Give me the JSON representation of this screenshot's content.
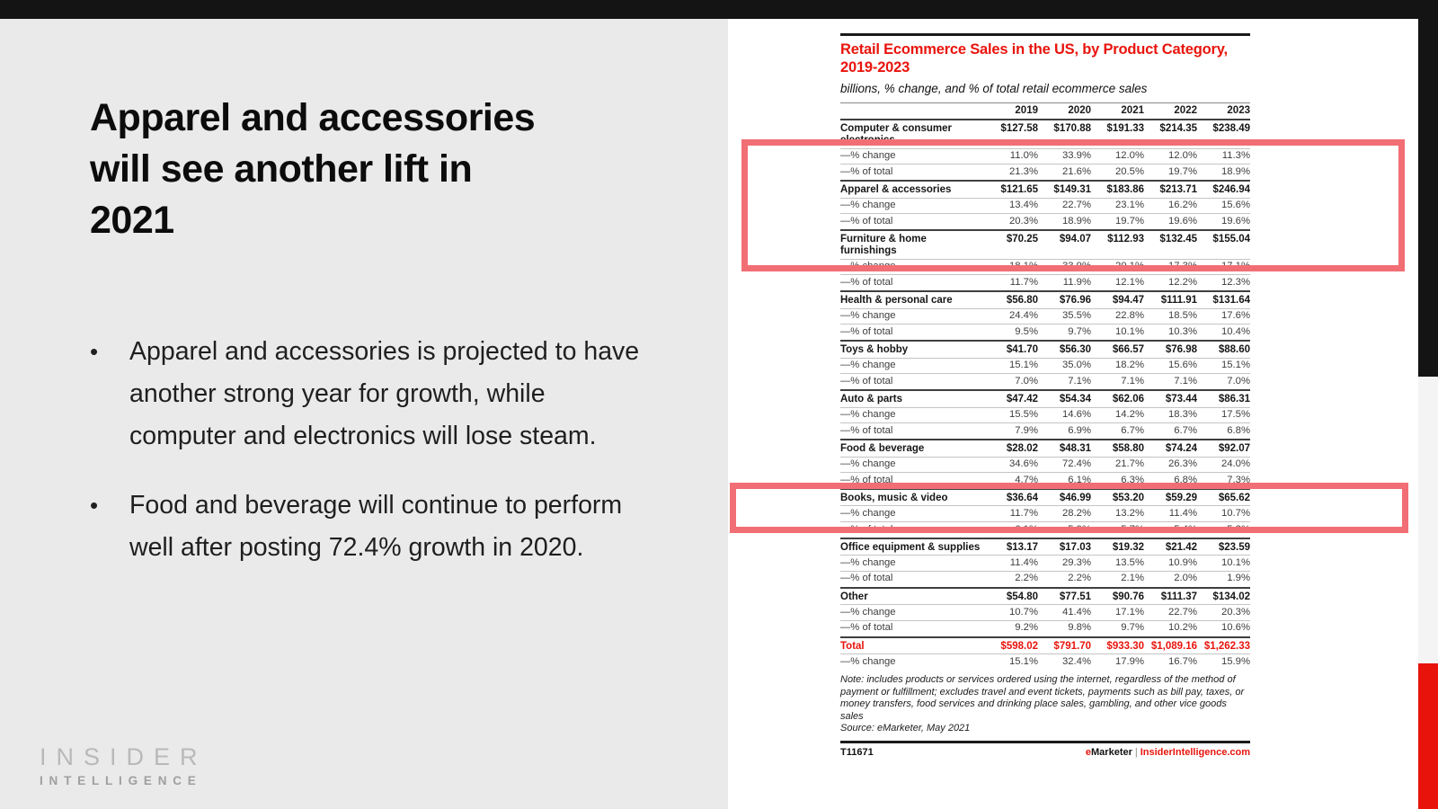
{
  "colors": {
    "brand_red": "#e8140c",
    "highlight_box": "#f26e75",
    "top_bar_black": "#141414",
    "right_strip_light": "#f4f4f4",
    "slide_background": "#eaeaea"
  },
  "slide": {
    "title": "Apparel and accessories will see another lift in 2021",
    "bullet_marker": "•",
    "bullets": [
      "Apparel and accessories is projected to have another strong year for growth, while computer and electronics will lose steam.",
      "Food and beverage will continue to perform well after posting 72.4% growth in 2020."
    ],
    "logo": {
      "line1": "INSIDER",
      "line2": "INTELLIGENCE"
    }
  },
  "table": {
    "title": "Retail Ecommerce Sales in the US, by Product Category, 2019-2023",
    "subtitle": "billions, % change, and % of total retail ecommerce sales",
    "years": [
      "2019",
      "2020",
      "2021",
      "2022",
      "2023"
    ],
    "sub_labels": {
      "change": "—% change",
      "share": "—% of total"
    },
    "categories": [
      {
        "name": "Computer & consumer electronics",
        "sales": [
          "$127.58",
          "$170.88",
          "$191.33",
          "$214.35",
          "$238.49"
        ],
        "change": [
          "11.0%",
          "33.9%",
          "12.0%",
          "12.0%",
          "11.3%"
        ],
        "share": [
          "21.3%",
          "21.6%",
          "20.5%",
          "19.7%",
          "18.9%"
        ]
      },
      {
        "name": "Apparel & accessories",
        "sales": [
          "$121.65",
          "$149.31",
          "$183.86",
          "$213.71",
          "$246.94"
        ],
        "change": [
          "13.4%",
          "22.7%",
          "23.1%",
          "16.2%",
          "15.6%"
        ],
        "share": [
          "20.3%",
          "18.9%",
          "19.7%",
          "19.6%",
          "19.6%"
        ]
      },
      {
        "name": "Furniture & home furnishings",
        "sales": [
          "$70.25",
          "$94.07",
          "$112.93",
          "$132.45",
          "$155.04"
        ],
        "change": [
          "18.1%",
          "33.9%",
          "20.1%",
          "17.3%",
          "17.1%"
        ],
        "share": [
          "11.7%",
          "11.9%",
          "12.1%",
          "12.2%",
          "12.3%"
        ]
      },
      {
        "name": "Health & personal care",
        "sales": [
          "$56.80",
          "$76.96",
          "$94.47",
          "$111.91",
          "$131.64"
        ],
        "change": [
          "24.4%",
          "35.5%",
          "22.8%",
          "18.5%",
          "17.6%"
        ],
        "share": [
          "9.5%",
          "9.7%",
          "10.1%",
          "10.3%",
          "10.4%"
        ]
      },
      {
        "name": "Toys & hobby",
        "sales": [
          "$41.70",
          "$56.30",
          "$66.57",
          "$76.98",
          "$88.60"
        ],
        "change": [
          "15.1%",
          "35.0%",
          "18.2%",
          "15.6%",
          "15.1%"
        ],
        "share": [
          "7.0%",
          "7.1%",
          "7.1%",
          "7.1%",
          "7.0%"
        ]
      },
      {
        "name": "Auto & parts",
        "sales": [
          "$47.42",
          "$54.34",
          "$62.06",
          "$73.44",
          "$86.31"
        ],
        "change": [
          "15.5%",
          "14.6%",
          "14.2%",
          "18.3%",
          "17.5%"
        ],
        "share": [
          "7.9%",
          "6.9%",
          "6.7%",
          "6.7%",
          "6.8%"
        ]
      },
      {
        "name": "Food & beverage",
        "sales": [
          "$28.02",
          "$48.31",
          "$58.80",
          "$74.24",
          "$92.07"
        ],
        "change": [
          "34.6%",
          "72.4%",
          "21.7%",
          "26.3%",
          "24.0%"
        ],
        "share": [
          "4.7%",
          "6.1%",
          "6.3%",
          "6.8%",
          "7.3%"
        ]
      },
      {
        "name": "Books, music & video",
        "sales": [
          "$36.64",
          "$46.99",
          "$53.20",
          "$59.29",
          "$65.62"
        ],
        "change": [
          "11.7%",
          "28.2%",
          "13.2%",
          "11.4%",
          "10.7%"
        ],
        "share": [
          "6.1%",
          "5.9%",
          "5.7%",
          "5.4%",
          "5.2%"
        ]
      },
      {
        "name": "Office equipment & supplies",
        "sales": [
          "$13.17",
          "$17.03",
          "$19.32",
          "$21.42",
          "$23.59"
        ],
        "change": [
          "11.4%",
          "29.3%",
          "13.5%",
          "10.9%",
          "10.1%"
        ],
        "share": [
          "2.2%",
          "2.2%",
          "2.1%",
          "2.0%",
          "1.9%"
        ]
      },
      {
        "name": "Other",
        "sales": [
          "$54.80",
          "$77.51",
          "$90.76",
          "$111.37",
          "$134.02"
        ],
        "change": [
          "10.7%",
          "41.4%",
          "17.1%",
          "22.7%",
          "20.3%"
        ],
        "share": [
          "9.2%",
          "9.8%",
          "9.7%",
          "10.2%",
          "10.6%"
        ]
      }
    ],
    "total_row": {
      "name": "Total",
      "sales": [
        "$598.02",
        "$791.70",
        "$933.30",
        "$1,089.16",
        "$1,262.33"
      ],
      "change": [
        "15.1%",
        "32.4%",
        "17.9%",
        "16.7%",
        "15.9%"
      ]
    },
    "note": "Note: includes products or services ordered using the internet, regardless of the method of payment or fulfillment; excludes travel and event tickets, payments such as bill pay, taxes, or money transfers, food services and drinking place sales, gambling, and other vice goods sales",
    "source": "Source: eMarketer, May 2021",
    "footer_left": "T11671",
    "footer_brand": {
      "e": "e",
      "marketer": "Marketer",
      "divider": "|",
      "site": "InsiderIntelligence.com"
    }
  }
}
